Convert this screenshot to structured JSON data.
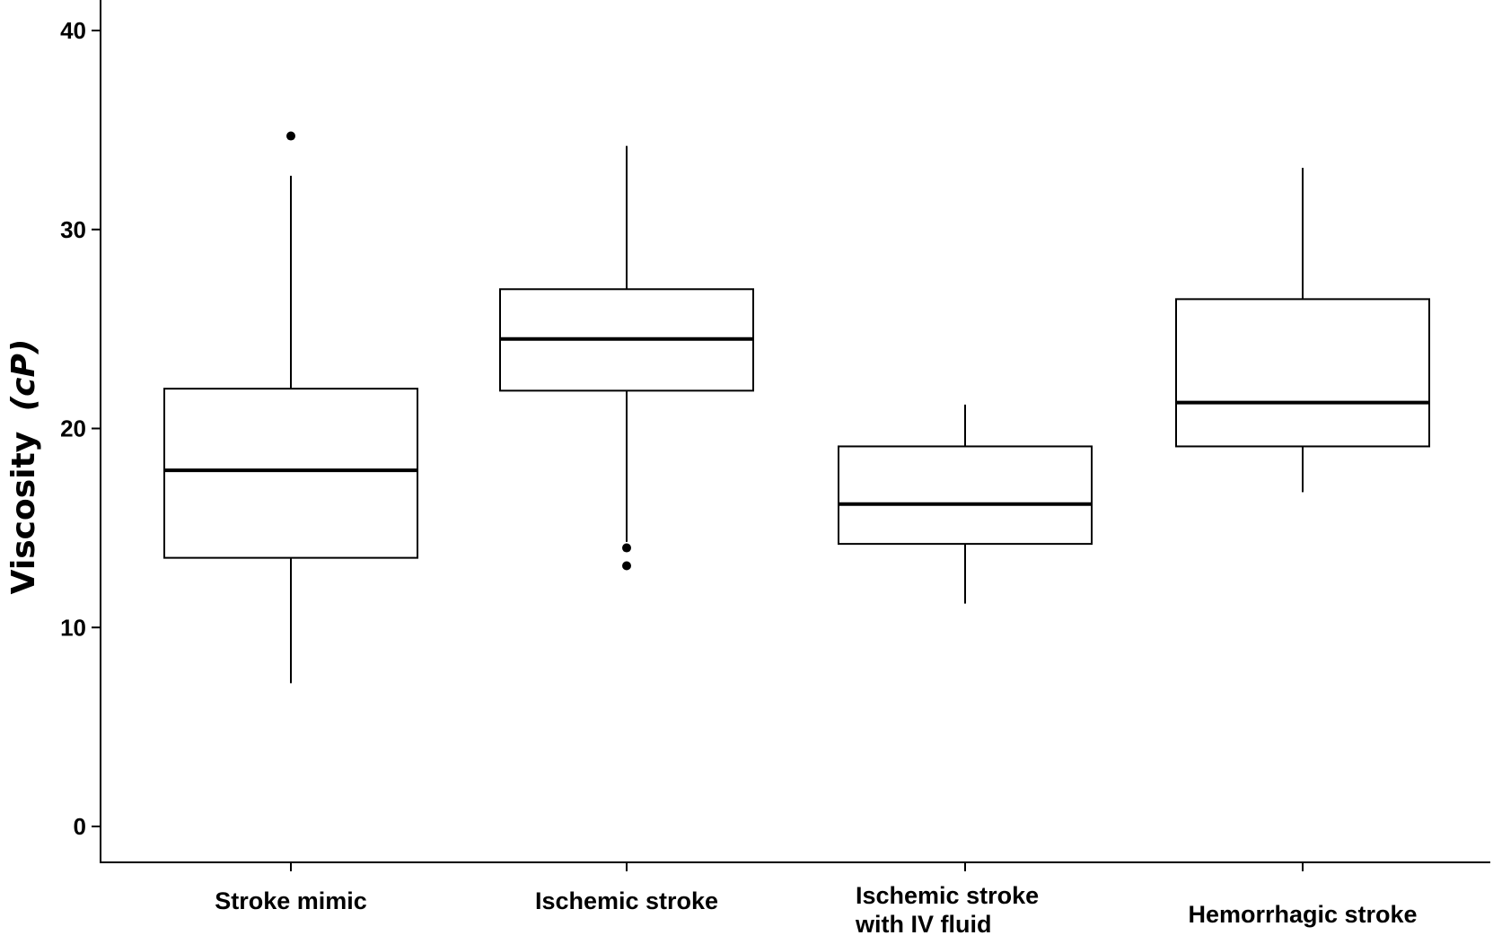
{
  "chart_data": {
    "type": "boxplot",
    "title": "",
    "xlabel": "",
    "ylabel": "Viscosity",
    "ylabel_unit": "(cP)",
    "ylim": [
      -2,
      41
    ],
    "yticks": [
      0,
      10,
      20,
      30,
      40
    ],
    "ytick_labels": [
      "0",
      "10",
      "20",
      "30",
      "40"
    ],
    "grid": false,
    "legend": "none",
    "categories": [
      {
        "lines": [
          "Stroke mimic"
        ]
      },
      {
        "lines": [
          "Ischemic stroke"
        ]
      },
      {
        "lines": [
          "Ischemic stroke",
          "with IV fluid"
        ]
      },
      {
        "lines": [
          "Hemorrhagic stroke"
        ]
      }
    ],
    "boxes": [
      {
        "whisker_low": 7.2,
        "q1": 13.5,
        "median": 17.9,
        "q3": 22.0,
        "whisker_high": 32.7,
        "outliers": [
          34.7
        ]
      },
      {
        "whisker_low": 14.3,
        "q1": 21.9,
        "median": 24.5,
        "q3": 27.0,
        "whisker_high": 34.2,
        "outliers": [
          14.0,
          13.1
        ]
      },
      {
        "whisker_low": 11.2,
        "q1": 14.2,
        "median": 16.2,
        "q3": 19.1,
        "whisker_high": 21.2,
        "outliers": []
      },
      {
        "whisker_low": 16.8,
        "q1": 19.1,
        "median": 21.3,
        "q3": 26.5,
        "whisker_high": 33.1,
        "outliers": []
      }
    ],
    "colors": {
      "stroke": "#000000",
      "box_fill": "#ffffff",
      "background": "#ffffff"
    }
  }
}
